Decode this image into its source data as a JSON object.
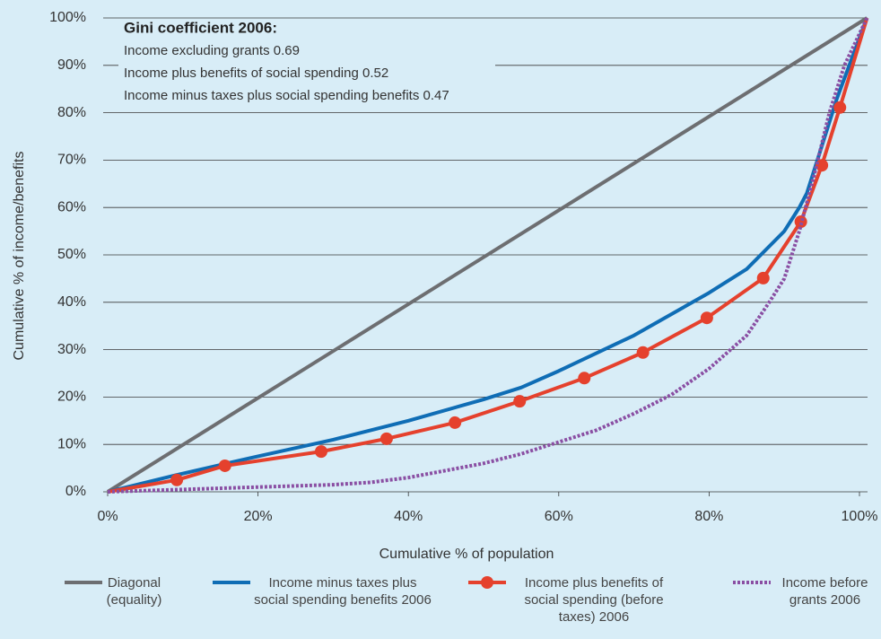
{
  "chart_data": {
    "type": "line",
    "xlabel": "Cumulative % of population",
    "ylabel": "Cumulative % of income/benefits",
    "annotation": {
      "title": "Gini coefficient 2006:",
      "lines": [
        "Income excluding grants 0.69",
        "Income plus benefits of social spending 0.52",
        "Income minus taxes plus social spending benefits 0.47"
      ]
    },
    "xlim": [
      0,
      101
    ],
    "ylim": [
      0,
      100
    ],
    "xticks": [
      {
        "value": 0,
        "label": "0%"
      },
      {
        "value": 20,
        "label": "20%"
      },
      {
        "value": 40,
        "label": "40%"
      },
      {
        "value": 60,
        "label": "60%"
      },
      {
        "value": 80,
        "label": "80%"
      },
      {
        "value": 100,
        "label": "100%"
      }
    ],
    "yticks": [
      {
        "value": 0,
        "label": "0%"
      },
      {
        "value": 10,
        "label": "10%"
      },
      {
        "value": 20,
        "label": "20%"
      },
      {
        "value": 30,
        "label": "30%"
      },
      {
        "value": 40,
        "label": "40%"
      },
      {
        "value": 50,
        "label": "50%"
      },
      {
        "value": 60,
        "label": "60%"
      },
      {
        "value": 70,
        "label": "70%"
      },
      {
        "value": 80,
        "label": "80%"
      },
      {
        "value": 90,
        "label": "90%"
      },
      {
        "value": 100,
        "label": "100%"
      }
    ],
    "grid": true,
    "series": [
      {
        "name": "Diagonal (equality)",
        "color": "#6d6e71",
        "style": "solid",
        "markers": false,
        "x": [
          0,
          101
        ],
        "values": [
          0,
          100
        ]
      },
      {
        "name": "Income minus taxes plus social spending benefits 2006",
        "color": "#0f6db5",
        "style": "solid",
        "markers": false,
        "x": [
          0,
          9,
          20,
          30,
          40,
          50,
          55,
          60,
          70,
          80,
          85,
          90,
          92,
          93,
          95,
          97,
          101
        ],
        "values": [
          0,
          3.5,
          7.5,
          11,
          15,
          19.5,
          22,
          25.5,
          33,
          42,
          47,
          55,
          60,
          63,
          73,
          83,
          100
        ]
      },
      {
        "name": "Income plus benefits of social spending (before taxes) 2006",
        "color": "#e5412d",
        "style": "solid",
        "markers": true,
        "x": [
          0,
          9.2,
          15.6,
          28.4,
          37.1,
          46.2,
          54.8,
          63.4,
          71.2,
          79.7,
          87.2,
          92.2,
          95.0,
          97.4,
          101
        ],
        "values": [
          0,
          2.5,
          5.5,
          8.5,
          11.2,
          14.6,
          19.1,
          24.0,
          29.4,
          36.7,
          45.1,
          57.0,
          68.9,
          81.1,
          100
        ]
      },
      {
        "name": "Income before grants 2006",
        "color": "#8a4fa3",
        "style": "dotted",
        "markers": false,
        "x": [
          0,
          10,
          20,
          30,
          35,
          40,
          45,
          50,
          55,
          60,
          65,
          70,
          75,
          80,
          85,
          88,
          90,
          92,
          94,
          96,
          98,
          101
        ],
        "values": [
          0,
          0.5,
          1,
          1.5,
          2,
          3,
          4.5,
          6,
          8,
          10.5,
          13,
          16.5,
          20.5,
          26,
          33,
          40,
          45,
          55,
          67,
          80,
          90,
          100
        ]
      }
    ]
  }
}
